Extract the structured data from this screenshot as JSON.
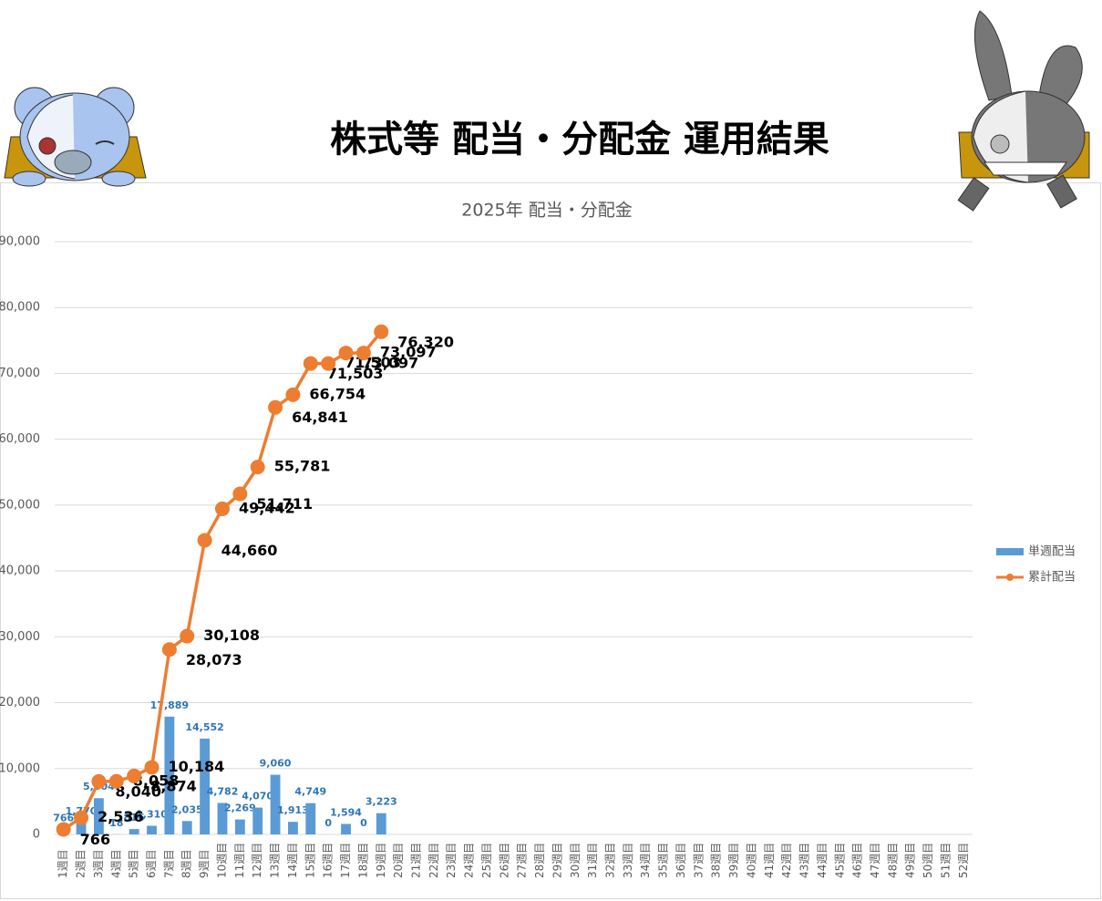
{
  "page_title": "株式等 配当・分配金 運用結果",
  "chart_data": {
    "type": "bar_line",
    "title": "2025年 配当・分配金",
    "categories": [
      "1週目",
      "2週目",
      "3週目",
      "4週目",
      "5週目",
      "6週目",
      "7週目",
      "8週目",
      "9週目",
      "10週目",
      "11週目",
      "12週目",
      "13週目",
      "14週目",
      "15週目",
      "16週目",
      "17週目",
      "18週目",
      "19週目",
      "20週目",
      "21週目",
      "22週目",
      "23週目",
      "24週目",
      "25週目",
      "26週目",
      "27週目",
      "28週目",
      "29週目",
      "30週目",
      "31週目",
      "32週目",
      "33週目",
      "34週目",
      "35週目",
      "36週目",
      "37週目",
      "38週目",
      "39週目",
      "40週目",
      "41週目",
      "42週目",
      "43週目",
      "44週目",
      "45週目",
      "46週目",
      "47週目",
      "48週目",
      "49週目",
      "50週目",
      "51週目",
      "52週目"
    ],
    "series": [
      {
        "name": "単週配当",
        "kind": "bar",
        "color": "#5b9bd5",
        "values": [
          766,
          1770,
          5504,
          18,
          816,
          1310,
          17889,
          2035,
          14552,
          4782,
          2269,
          4070,
          9060,
          1913,
          4749,
          0,
          1594,
          0,
          3223,
          null,
          null,
          null,
          null,
          null,
          null,
          null,
          null,
          null,
          null,
          null,
          null,
          null,
          null,
          null,
          null,
          null,
          null,
          null,
          null,
          null,
          null,
          null,
          null,
          null,
          null,
          null,
          null,
          null,
          null,
          null,
          null,
          null
        ],
        "value_labels": [
          "766",
          "1,770",
          "5,504",
          "18",
          "816",
          "1,310",
          "17,889",
          "2,035",
          "14,552",
          "4,782",
          "2,269",
          "4,070",
          "9,060",
          "1,913",
          "4,749",
          "0",
          "1,594",
          "0",
          "3,223",
          null,
          null,
          null,
          null,
          null,
          null,
          null,
          null,
          null,
          null,
          null,
          null,
          null,
          null,
          null,
          null,
          null,
          null,
          null,
          null,
          null,
          null,
          null,
          null,
          null,
          null,
          null,
          null,
          null,
          null,
          null,
          null,
          null
        ]
      },
      {
        "name": "累計配当",
        "kind": "line",
        "color": "#ed7d31",
        "values": [
          766,
          2536,
          8040,
          8058,
          8874,
          10184,
          28073,
          30108,
          44660,
          49442,
          51711,
          55781,
          64841,
          66754,
          71503,
          71503,
          73097,
          73097,
          76320,
          null,
          null,
          null,
          null,
          null,
          null,
          null,
          null,
          null,
          null,
          null,
          null,
          null,
          null,
          null,
          null,
          null,
          null,
          null,
          null,
          null,
          null,
          null,
          null,
          null,
          null,
          null,
          null,
          null,
          null,
          null,
          null,
          null
        ],
        "value_labels": [
          "766",
          "2,536",
          "8,040",
          "8,058",
          "8,874",
          "10,184",
          "28,073",
          "30,108",
          "44,660",
          "49,442",
          "51,711",
          "55,781",
          "64,841",
          "66,754",
          "71,503",
          "71,503",
          "73,097",
          "73,097",
          "76,320",
          null,
          null,
          null,
          null,
          null,
          null,
          null,
          null,
          null,
          null,
          null,
          null,
          null,
          null,
          null,
          null,
          null,
          null,
          null,
          null,
          null,
          null,
          null,
          null,
          null,
          null,
          null,
          null,
          null,
          null,
          null,
          null,
          null
        ]
      }
    ],
    "ylim": [
      0,
      90000
    ],
    "yticks": [
      0,
      {
        "value": 10000,
        "label": "10,000"
      },
      {
        "value": 20000,
        "label": "20,000"
      },
      {
        "value": 30000,
        "label": "30,000"
      },
      {
        "value": 40000,
        "label": "40,000"
      },
      {
        "value": 50000,
        "label": "50,000"
      },
      {
        "value": 60000,
        "label": "60,000"
      },
      {
        "value": 70000,
        "label": "70,000"
      },
      {
        "value": 80000,
        "label": "80,000"
      },
      {
        "value": 90000,
        "label": "90,000"
      }
    ],
    "grid": true,
    "legend": "right"
  }
}
